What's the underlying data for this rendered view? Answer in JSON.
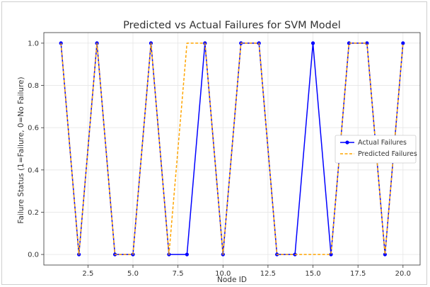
{
  "chart_data": {
    "type": "line",
    "title": "Predicted vs Actual Failures for SVM Model",
    "xlabel": "Node ID",
    "ylabel": "Failure Status (1=Failure, 0=No Failure)",
    "x": [
      1,
      2,
      3,
      4,
      5,
      6,
      7,
      8,
      9,
      10,
      11,
      12,
      13,
      14,
      15,
      16,
      17,
      18,
      19,
      20
    ],
    "xlim": [
      0.05,
      20.95
    ],
    "ylim": [
      -0.05,
      1.05
    ],
    "xticks": [
      2.5,
      5.0,
      7.5,
      10.0,
      12.5,
      15.0,
      17.5,
      20.0
    ],
    "xtick_labels": [
      "2.5",
      "5.0",
      "7.5",
      "10.0",
      "12.5",
      "15.0",
      "17.5",
      "20.0"
    ],
    "yticks": [
      0.0,
      0.2,
      0.4,
      0.6,
      0.8,
      1.0
    ],
    "ytick_labels": [
      "0.0",
      "0.2",
      "0.4",
      "0.6",
      "0.8",
      "1.0"
    ],
    "grid": true,
    "legend_position": "center-right",
    "series": [
      {
        "name": "Actual Failures",
        "values": [
          1,
          0,
          1,
          0,
          0,
          1,
          0,
          0,
          1,
          0,
          1,
          1,
          0,
          0,
          1,
          0,
          1,
          1,
          0,
          1
        ],
        "color": "#0000ff",
        "style": "solid",
        "marker": "circle"
      },
      {
        "name": "Predicted Failures",
        "values": [
          1,
          0,
          1,
          0,
          0,
          1,
          0,
          1,
          1,
          0,
          1,
          1,
          0,
          0,
          0,
          0,
          1,
          1,
          0,
          1
        ],
        "color": "#ffa500",
        "style": "dashed",
        "marker": "none"
      }
    ]
  }
}
